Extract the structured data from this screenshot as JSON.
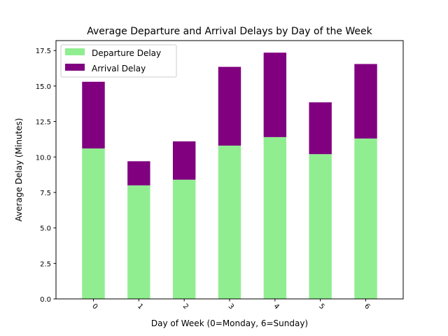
{
  "chart_data": {
    "type": "bar",
    "stacked": true,
    "title": "Average Departure and Arrival Delays by Day of the Week",
    "xlabel": "Day of Week (0=Monday, 6=Sunday)",
    "ylabel": "Average Delay (Minutes)",
    "categories": [
      "0",
      "1",
      "2",
      "3",
      "4",
      "5",
      "6"
    ],
    "series": [
      {
        "name": "Departure Delay",
        "color": "#90ee90",
        "values": [
          10.6,
          8.0,
          8.4,
          10.8,
          11.4,
          10.2,
          11.3
        ]
      },
      {
        "name": "Arrival Delay",
        "color": "#800080",
        "values": [
          4.7,
          1.7,
          2.7,
          5.55,
          5.95,
          3.65,
          5.25
        ]
      }
    ],
    "ylim": [
      0,
      18.2
    ],
    "yticks": [
      0.0,
      2.5,
      5.0,
      7.5,
      10.0,
      12.5,
      15.0,
      17.5
    ],
    "ytick_labels": [
      "0.0",
      "2.5",
      "5.0",
      "7.5",
      "10.0",
      "12.5",
      "15.0",
      "17.5"
    ],
    "xtick_rotation": 45,
    "grid": false,
    "legend_position": "top-left"
  }
}
